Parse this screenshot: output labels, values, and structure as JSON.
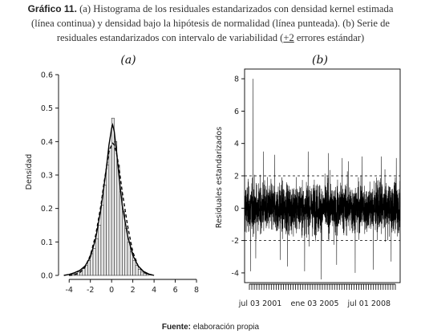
{
  "caption": {
    "label": "Gráfico 11.",
    "line1": "(a) Histograma de los residuales estandarizados con densidad kernel estimada",
    "line2": "(línea continua) y densidad bajo la hipótesis de normalidad (línea punteada). (b) Serie de",
    "line3_pre": "residuales estandarizados con intervalo de variabilidad (",
    "line3_pm": "+2",
    "line3_post": " errores estándar)"
  },
  "source": {
    "label": "Fuente:",
    "text": " elaboración propia"
  },
  "colors": {
    "bars_fill": "#e8e8e8",
    "lines": "#000000",
    "frame": "#000000",
    "series": "#000000"
  },
  "chart_data": [
    {
      "type": "bar",
      "panel_title": "(a)",
      "ylabel": "Densidad",
      "xlabel": "",
      "xlim": [
        -5,
        8.6
      ],
      "ylim": [
        0,
        0.6
      ],
      "xticks": [
        -4,
        -2,
        0,
        2,
        4,
        6,
        8
      ],
      "xtick_labels": [
        "-4",
        "-2",
        "0",
        "2",
        "4",
        "6",
        "8"
      ],
      "yticks": [
        0.0,
        0.1,
        0.2,
        0.3,
        0.4,
        0.5,
        0.6
      ],
      "ytick_labels": [
        "0.0",
        "0.1",
        "0.2",
        "0.3",
        "0.4",
        "0.5",
        "0.6"
      ],
      "bin_width": 0.25,
      "bin_starts": [
        -4.0,
        -3.75,
        -3.5,
        -3.25,
        -3.0,
        -2.75,
        -2.5,
        -2.25,
        -2.0,
        -1.75,
        -1.5,
        -1.25,
        -1.0,
        -0.75,
        -0.5,
        -0.25,
        0.0,
        0.25,
        0.5,
        0.75,
        1.0,
        1.25,
        1.5,
        1.75,
        2.0,
        2.25,
        2.5,
        2.75,
        3.0,
        3.25
      ],
      "values": [
        0.002,
        0.004,
        0.006,
        0.01,
        0.014,
        0.02,
        0.03,
        0.045,
        0.065,
        0.08,
        0.11,
        0.15,
        0.21,
        0.27,
        0.33,
        0.38,
        0.47,
        0.4,
        0.33,
        0.25,
        0.19,
        0.14,
        0.1,
        0.07,
        0.045,
        0.03,
        0.018,
        0.01,
        0.006,
        0.003
      ],
      "series": [
        {
          "name": "densidad kernel estimada",
          "style": "solid",
          "x": [
            -4.5,
            -4.0,
            -3.5,
            -3.0,
            -2.5,
            -2.0,
            -1.5,
            -1.0,
            -0.75,
            -0.5,
            -0.25,
            0.0,
            0.1,
            0.25,
            0.5,
            0.75,
            1.0,
            1.5,
            2.0,
            2.5,
            3.0,
            3.5,
            4.0
          ],
          "y": [
            0.0,
            0.003,
            0.008,
            0.015,
            0.028,
            0.055,
            0.11,
            0.2,
            0.26,
            0.32,
            0.39,
            0.44,
            0.45,
            0.43,
            0.36,
            0.28,
            0.21,
            0.12,
            0.06,
            0.028,
            0.012,
            0.004,
            0.0
          ]
        },
        {
          "name": "densidad bajo la hipótesis de normalidad",
          "style": "dashed",
          "x": [
            -4.0,
            -3.5,
            -3.0,
            -2.5,
            -2.0,
            -1.5,
            -1.0,
            -0.75,
            -0.5,
            -0.25,
            0.0,
            0.1,
            0.25,
            0.5,
            0.75,
            1.0,
            1.5,
            2.0,
            2.5,
            3.0,
            3.5,
            4.0
          ],
          "y": [
            0.0,
            0.002,
            0.008,
            0.025,
            0.06,
            0.12,
            0.21,
            0.27,
            0.32,
            0.37,
            0.39,
            0.395,
            0.39,
            0.36,
            0.31,
            0.25,
            0.15,
            0.07,
            0.028,
            0.01,
            0.003,
            0.0
          ]
        }
      ]
    },
    {
      "type": "line",
      "panel_title": "(b)",
      "ylabel": "Residuales estandarizados",
      "xlabel": "",
      "ylim": [
        -4.6,
        8.6
      ],
      "yticks": [
        -4,
        -2,
        0,
        2,
        4,
        6,
        8
      ],
      "ytick_labels": [
        "-4",
        "-2",
        "0",
        "2",
        "4",
        "6",
        "8"
      ],
      "xlim": [
        "2000-07-01",
        "2010-06-30"
      ],
      "xticks": [
        "2001-07-03",
        "2005-01-03",
        "2008-07-01"
      ],
      "xtick_labels": [
        "jul 03 2001",
        "ene 03 2005",
        "jul 01 2008"
      ],
      "reference_lines": [
        2,
        -2
      ],
      "n_obs": 2400,
      "band_sd": 0.75,
      "spikes": [
        {
          "date": "2001-01-15",
          "value": 8.0
        },
        {
          "date": "2000-11-20",
          "value": -3.9
        },
        {
          "date": "2001-03-20",
          "value": -3.1
        },
        {
          "date": "2001-09-20",
          "value": 3.5
        },
        {
          "date": "2002-06-10",
          "value": 3.3
        },
        {
          "date": "2002-10-15",
          "value": -3.2
        },
        {
          "date": "2003-04-01",
          "value": -3.6
        },
        {
          "date": "2004-05-10",
          "value": -3.9
        },
        {
          "date": "2004-08-01",
          "value": 3.5
        },
        {
          "date": "2005-06-01",
          "value": -4.4
        },
        {
          "date": "2005-11-20",
          "value": 3.4
        },
        {
          "date": "2006-06-01",
          "value": -3.5
        },
        {
          "date": "2006-10-10",
          "value": 3.1
        },
        {
          "date": "2007-03-01",
          "value": 2.9
        },
        {
          "date": "2007-08-10",
          "value": -4.0
        },
        {
          "date": "2008-01-20",
          "value": 3.2
        },
        {
          "date": "2008-10-10",
          "value": -3.8
        },
        {
          "date": "2009-04-15",
          "value": 3.2
        },
        {
          "date": "2009-12-01",
          "value": -3.3
        },
        {
          "date": "2010-04-01",
          "value": 3.1
        }
      ]
    }
  ]
}
